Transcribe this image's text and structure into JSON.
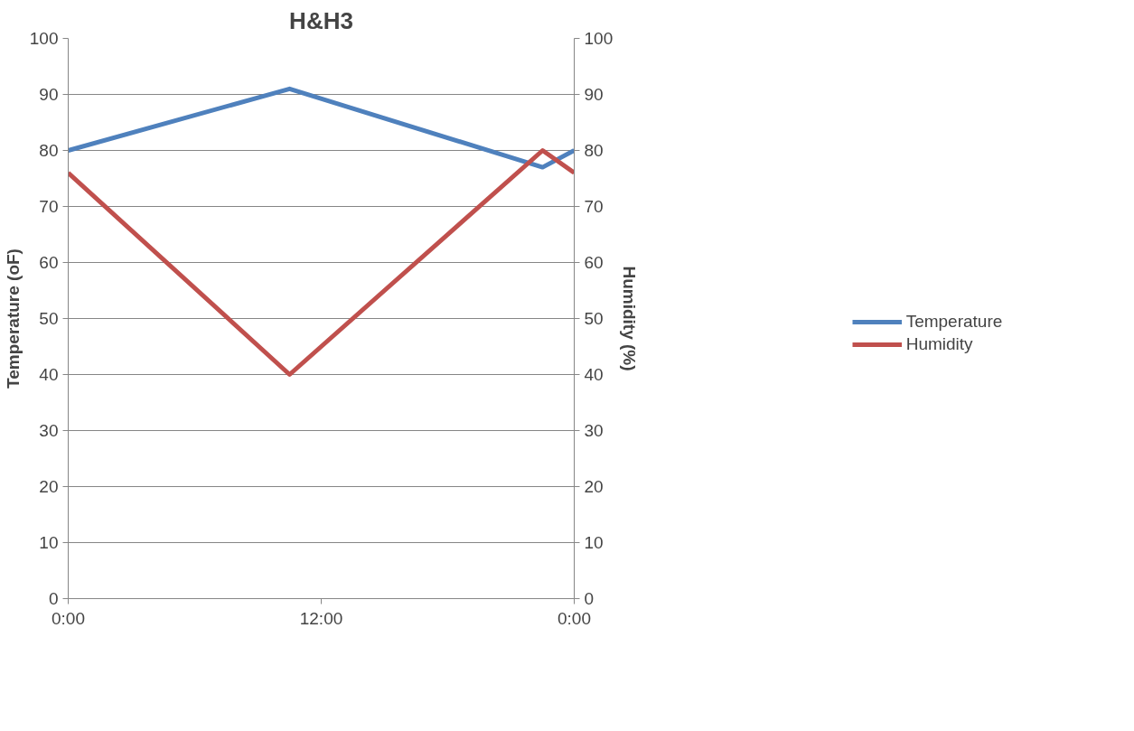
{
  "chart_data": {
    "type": "line",
    "title": "H&H3",
    "ylabel": "Temperature (oF)",
    "y2label": "Humidity (%)",
    "x": [
      0,
      10.5,
      22.5,
      24
    ],
    "series": [
      {
        "name": "Temperature",
        "color": "#4f81bd",
        "values": [
          80,
          91,
          77,
          80
        ]
      },
      {
        "name": "Humidity",
        "color": "#c0504d",
        "values": [
          76,
          40,
          80,
          76
        ]
      }
    ],
    "xlim": [
      0,
      24
    ],
    "xticks": [
      {
        "value": 0,
        "label": "0:00"
      },
      {
        "value": 12,
        "label": "12:00"
      },
      {
        "value": 24,
        "label": "0:00"
      }
    ],
    "ylim": [
      0,
      100
    ],
    "yticks": [
      0,
      10,
      20,
      30,
      40,
      50,
      60,
      70,
      80,
      90,
      100
    ],
    "y2lim": [
      0,
      100
    ],
    "y2ticks": [
      0,
      10,
      20,
      30,
      40,
      50,
      60,
      70,
      80,
      90,
      100
    ],
    "grid": "y",
    "legend": "right",
    "marker": "none",
    "line_style": "solid"
  }
}
